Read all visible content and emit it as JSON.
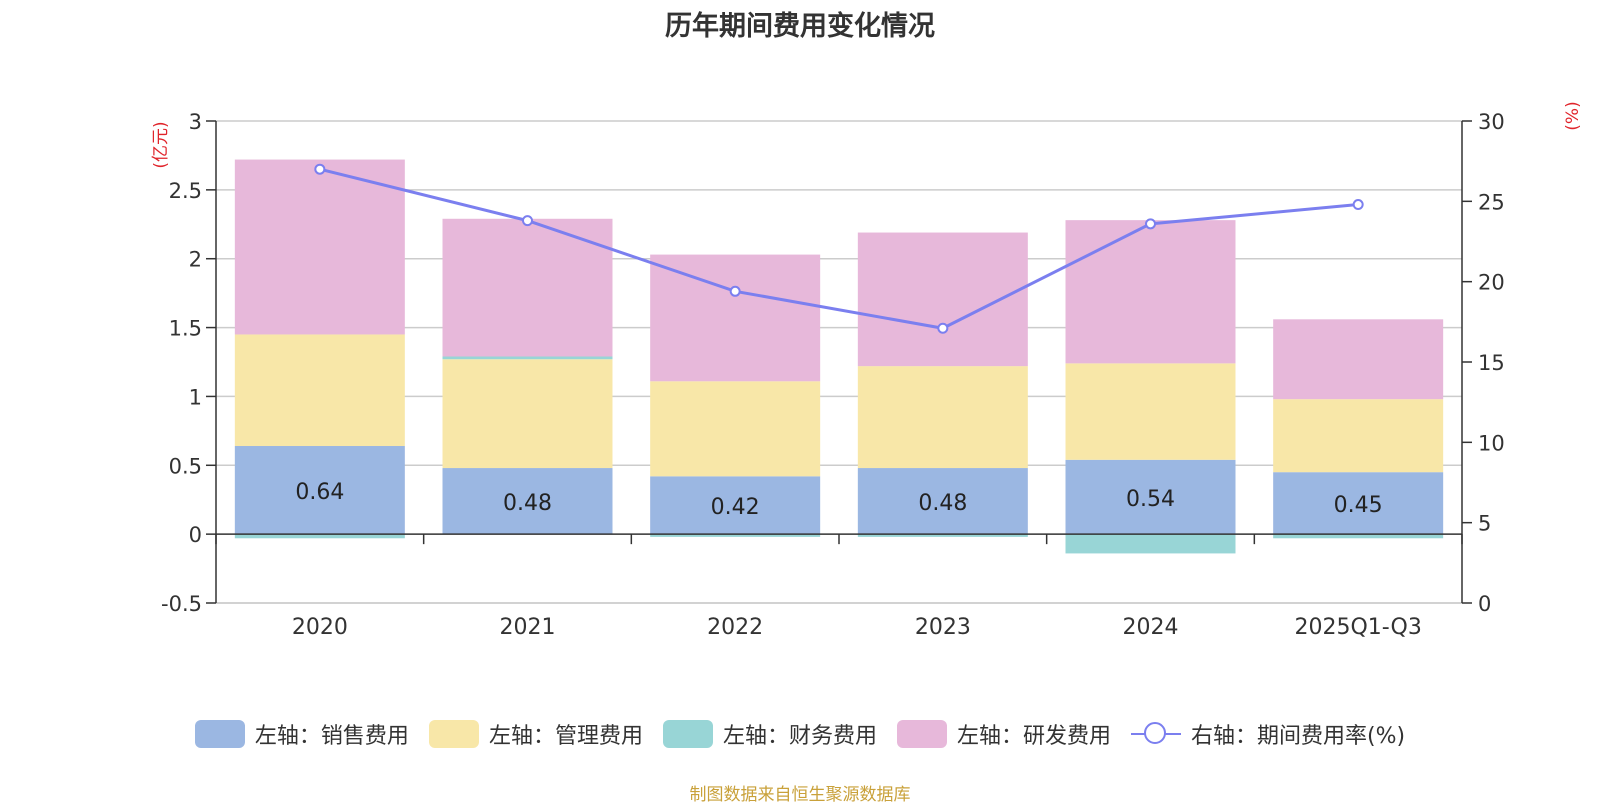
{
  "title": "历年期间费用变化情况",
  "source": "制图数据来自恒生聚源数据库",
  "colors": {
    "sales": "#9bb7e2",
    "admin": "#f8e7a8",
    "finance": "#98d5d6",
    "rd": "#e7b8da",
    "rate": "#7b7fef",
    "unit": "#e0242b"
  },
  "chart_data": {
    "type": "bar",
    "stacked": true,
    "categories": [
      "2020",
      "2021",
      "2022",
      "2023",
      "2024",
      "2025Q1-Q3"
    ],
    "left_axis": {
      "unit": "(亿元)",
      "ylim": [
        -0.5,
        3
      ],
      "ticks": [
        "-0.5",
        "0",
        "0.5",
        "1",
        "1.5",
        "2",
        "2.5",
        "3"
      ]
    },
    "right_axis": {
      "unit": "(%)",
      "ylim": [
        0,
        30
      ],
      "ticks": [
        "0",
        "5",
        "10",
        "15",
        "20",
        "25",
        "30"
      ]
    },
    "series": [
      {
        "name": "左轴：销售费用",
        "key": "sales",
        "values": [
          0.64,
          0.48,
          0.42,
          0.48,
          0.54,
          0.45
        ],
        "labels": [
          "0.64",
          "0.48",
          "0.42",
          "0.48",
          "0.54",
          "0.45"
        ]
      },
      {
        "name": "左轴：管理费用",
        "key": "admin",
        "values": [
          0.81,
          0.79,
          0.69,
          0.74,
          0.7,
          0.53
        ]
      },
      {
        "name": "左轴：财务费用",
        "key": "finance",
        "values": [
          -0.03,
          0.02,
          -0.02,
          -0.02,
          -0.14,
          -0.03
        ]
      },
      {
        "name": "左轴：研发费用",
        "key": "rd",
        "values": [
          1.27,
          1.0,
          0.92,
          0.97,
          1.04,
          0.58
        ]
      },
      {
        "name": "右轴：期间费用率(%)",
        "key": "rate",
        "type": "line",
        "axis": "right",
        "values": [
          27.0,
          23.8,
          19.4,
          17.1,
          23.6,
          24.8
        ]
      }
    ]
  }
}
